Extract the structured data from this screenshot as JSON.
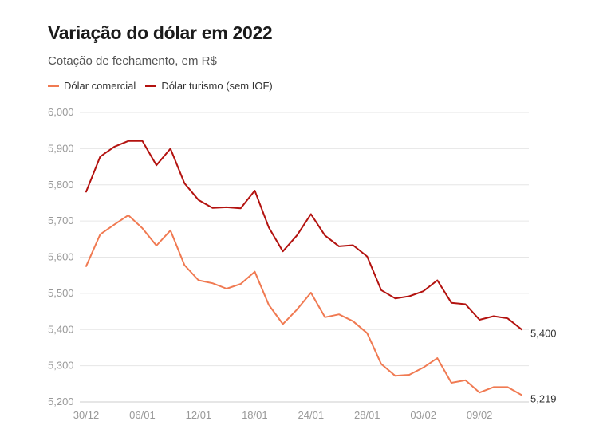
{
  "title": "Variação do dólar em 2022",
  "subtitle": "Cotação de fechamento, em R$",
  "colors": {
    "comercial": "#f07a52",
    "turismo": "#b3120f",
    "grid": "#e6e6e6",
    "axis": "#cccccc"
  },
  "chart_data": {
    "type": "line",
    "xlabel": "",
    "ylabel": "",
    "ylim": [
      5.2,
      6.0
    ],
    "yticks": [
      "5,200",
      "5,300",
      "5,400",
      "5,500",
      "5,600",
      "5,700",
      "5,800",
      "5,900",
      "6,000"
    ],
    "ytick_values": [
      5.2,
      5.3,
      5.4,
      5.5,
      5.6,
      5.7,
      5.8,
      5.9,
      6.0
    ],
    "xtick_labels": [
      "30/12",
      "06/01",
      "12/01",
      "18/01",
      "24/01",
      "28/01",
      "03/02",
      "09/02"
    ],
    "xtick_indices": [
      0,
      4,
      8,
      12,
      16,
      20,
      24,
      28
    ],
    "grid": true,
    "legend_position": "top-left",
    "series": [
      {
        "name": "Dólar comercial",
        "color": "#f07a52",
        "values": [
          5.575,
          5.663,
          5.69,
          5.716,
          5.68,
          5.632,
          5.674,
          5.578,
          5.536,
          5.528,
          5.513,
          5.526,
          5.56,
          5.468,
          5.415,
          5.455,
          5.502,
          5.434,
          5.442,
          5.423,
          5.39,
          5.305,
          5.272,
          5.275,
          5.295,
          5.321,
          5.253,
          5.26,
          5.226,
          5.241,
          5.241,
          5.219
        ],
        "end_label": "5,219"
      },
      {
        "name": "Dólar turismo (sem IOF)",
        "color": "#b3120f",
        "values": [
          5.781,
          5.878,
          5.905,
          5.921,
          5.921,
          5.854,
          5.9,
          5.804,
          5.758,
          5.736,
          5.738,
          5.735,
          5.784,
          5.682,
          5.616,
          5.66,
          5.719,
          5.66,
          5.63,
          5.633,
          5.602,
          5.509,
          5.486,
          5.492,
          5.506,
          5.536,
          5.474,
          5.47,
          5.427,
          5.437,
          5.431,
          5.4
        ],
        "end_label": "5,400"
      }
    ]
  }
}
